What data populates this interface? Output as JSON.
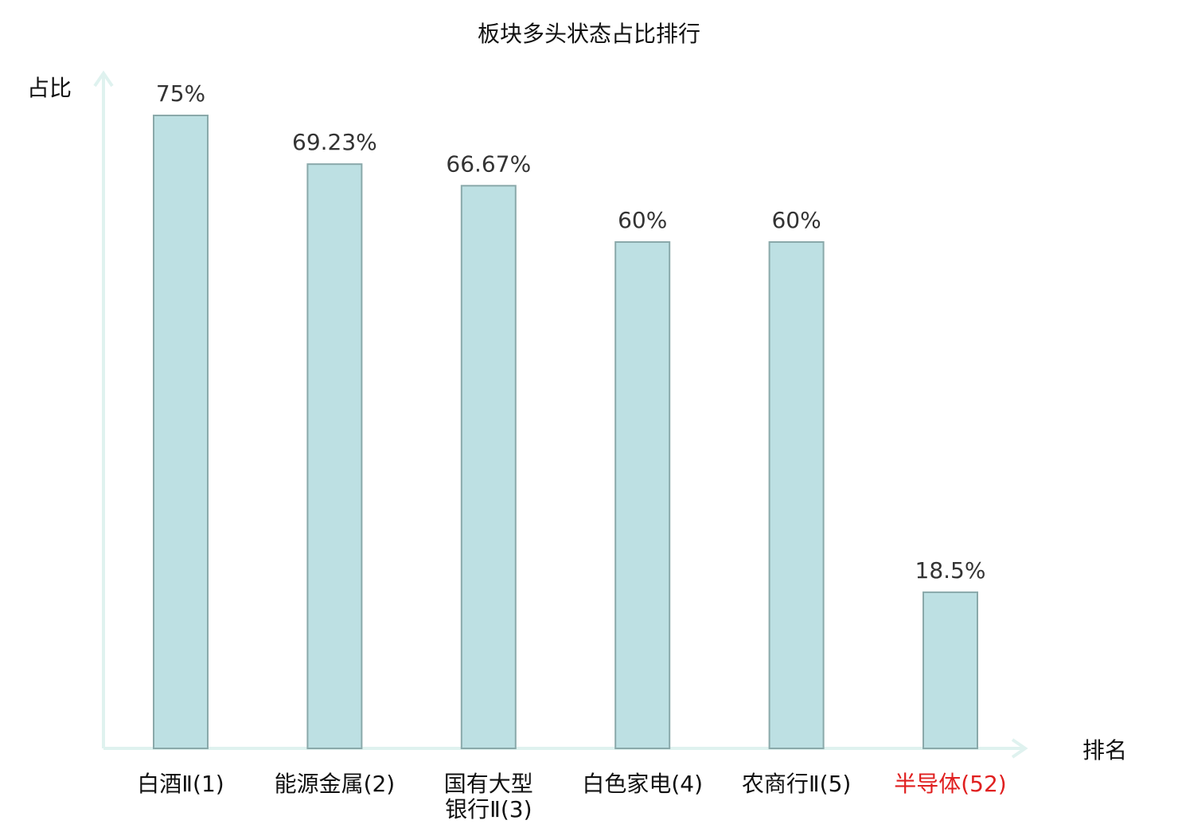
{
  "chart_data": {
    "type": "bar",
    "title": "板块多头状态占比排行",
    "ylabel": "占比",
    "xlabel": "排名",
    "categories": [
      [
        "白酒Ⅱ(1)"
      ],
      [
        "能源金属(2)"
      ],
      [
        "国有大型",
        "银行Ⅱ(3)"
      ],
      [
        "白色家电(4)"
      ],
      [
        "农商行Ⅱ(5)"
      ],
      [
        "半导体(52)"
      ]
    ],
    "values": [
      75,
      69.23,
      66.67,
      60,
      60,
      18.5
    ],
    "value_labels": [
      "75%",
      "69.23%",
      "66.67%",
      "60%",
      "60%",
      "18.5%"
    ],
    "ylim": [
      0,
      75
    ],
    "grid": false,
    "colors": {
      "bar_fill": "#bde0e3",
      "bar_stroke": "#8aa9aa",
      "axis": "#dff2ef",
      "highlight_label": "#e02020",
      "normal_label": "#111111"
    },
    "highlight_index": 5
  }
}
